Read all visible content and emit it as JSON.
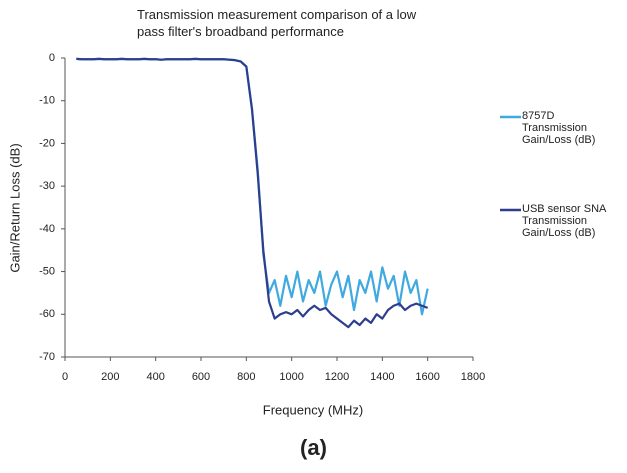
{
  "chart_data": {
    "type": "line",
    "title": "Transmission measurement comparison of a low pass filter's broadband performance",
    "x_label": "Frequency (MHz)",
    "y_label": "Gain/Return Loss  (dB)",
    "caption": "(a)",
    "xlim": [
      0,
      1800
    ],
    "xticks": [
      0,
      200,
      400,
      600,
      800,
      1000,
      1200,
      1400,
      1600,
      1800
    ],
    "ylim": [
      -70,
      0
    ],
    "yticks": [
      0,
      -10,
      -20,
      -30,
      -40,
      -50,
      -60,
      -70
    ],
    "grid": false,
    "legend": "right",
    "x": [
      50,
      75,
      100,
      125,
      150,
      175,
      200,
      225,
      250,
      275,
      300,
      325,
      350,
      375,
      400,
      425,
      450,
      475,
      500,
      525,
      550,
      575,
      600,
      625,
      650,
      675,
      700,
      725,
      750,
      775,
      800,
      825,
      850,
      875,
      900,
      925,
      950,
      975,
      1000,
      1025,
      1050,
      1075,
      1100,
      1125,
      1150,
      1175,
      1200,
      1225,
      1250,
      1275,
      1300,
      1325,
      1350,
      1375,
      1400,
      1425,
      1450,
      1475,
      1500,
      1525,
      1550,
      1575,
      1600
    ],
    "series": [
      {
        "name": "8757D Transmission Gain/Loss (dB)",
        "color": "#3fa9e0",
        "values": [
          -0.2,
          -0.3,
          -0.3,
          -0.3,
          -0.2,
          -0.3,
          -0.3,
          -0.3,
          -0.2,
          -0.3,
          -0.3,
          -0.3,
          -0.2,
          -0.3,
          -0.3,
          -0.4,
          -0.3,
          -0.3,
          -0.3,
          -0.3,
          -0.3,
          -0.2,
          -0.3,
          -0.3,
          -0.3,
          -0.3,
          -0.3,
          -0.4,
          -0.5,
          -0.8,
          -2,
          -12,
          -26,
          -46,
          -55,
          -52,
          -58,
          -51,
          -56,
          -50,
          -57,
          -52,
          -55,
          -50,
          -58,
          -53,
          -50,
          -56,
          -51,
          -59,
          -52,
          -55,
          -50,
          -57,
          -49,
          -54,
          -51,
          -58,
          -50,
          -55,
          -52,
          -60,
          -54
        ]
      },
      {
        "name": "USB sensor SNA Transmission Gain/Loss (dB)",
        "color": "#2e3e8f",
        "values": [
          -0.2,
          -0.3,
          -0.3,
          -0.3,
          -0.2,
          -0.3,
          -0.3,
          -0.3,
          -0.2,
          -0.3,
          -0.3,
          -0.3,
          -0.2,
          -0.3,
          -0.3,
          -0.4,
          -0.3,
          -0.3,
          -0.3,
          -0.3,
          -0.3,
          -0.2,
          -0.3,
          -0.3,
          -0.3,
          -0.3,
          -0.3,
          -0.4,
          -0.5,
          -0.8,
          -2,
          -12,
          -27,
          -45,
          -57,
          -61,
          -60,
          -59.5,
          -60,
          -59,
          -60.5,
          -59,
          -58,
          -59,
          -58.5,
          -60,
          -61,
          -62,
          -63,
          -61.5,
          -62.5,
          -61,
          -62,
          -60,
          -61,
          -59,
          -58,
          -57.5,
          -59,
          -58,
          -57.5,
          -58,
          -58.5
        ]
      }
    ]
  }
}
